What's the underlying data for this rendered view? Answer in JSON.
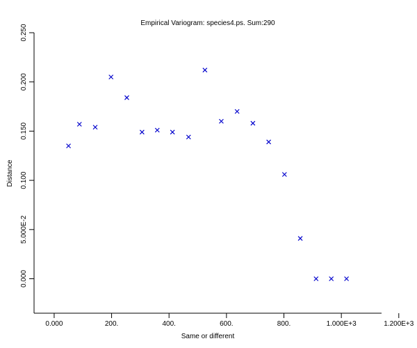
{
  "chart_data": {
    "type": "scatter",
    "title": "Empirical Variogram: species4.ps. Sum:290",
    "xlabel": "Same or different",
    "ylabel": "Distance",
    "xlim": [
      -70,
      1140
    ],
    "ylim": [
      -0.035,
      0.25
    ],
    "x_ticks": [
      {
        "value": 0,
        "label": "0.000"
      },
      {
        "value": 200,
        "label": "200."
      },
      {
        "value": 400,
        "label": "400."
      },
      {
        "value": 600,
        "label": "600."
      },
      {
        "value": 800,
        "label": "800."
      },
      {
        "value": 1000,
        "label": "1.000E+3"
      },
      {
        "value": 1200,
        "label": "1.200E+3"
      }
    ],
    "y_ticks": [
      {
        "value": 0.0,
        "label": "0.000"
      },
      {
        "value": 0.05,
        "label": "5.000E-2"
      },
      {
        "value": 0.1,
        "label": "0.100"
      },
      {
        "value": 0.15,
        "label": "0.150"
      },
      {
        "value": 0.2,
        "label": "0.200"
      },
      {
        "value": 0.25,
        "label": "0.250"
      }
    ],
    "marker": "x",
    "color": "#0000cc",
    "grid": false,
    "series": [
      {
        "points": [
          {
            "x": 50,
            "y": 0.135
          },
          {
            "x": 88,
            "y": 0.157
          },
          {
            "x": 143,
            "y": 0.154
          },
          {
            "x": 198,
            "y": 0.205
          },
          {
            "x": 253,
            "y": 0.184
          },
          {
            "x": 306,
            "y": 0.149
          },
          {
            "x": 359,
            "y": 0.151
          },
          {
            "x": 412,
            "y": 0.149
          },
          {
            "x": 468,
            "y": 0.144
          },
          {
            "x": 525,
            "y": 0.212
          },
          {
            "x": 582,
            "y": 0.16
          },
          {
            "x": 637,
            "y": 0.17
          },
          {
            "x": 692,
            "y": 0.158
          },
          {
            "x": 747,
            "y": 0.139
          },
          {
            "x": 802,
            "y": 0.106
          },
          {
            "x": 857,
            "y": 0.041
          },
          {
            "x": 912,
            "y": 0.0
          },
          {
            "x": 965,
            "y": 0.0
          },
          {
            "x": 1018,
            "y": 0.0
          }
        ]
      }
    ]
  }
}
